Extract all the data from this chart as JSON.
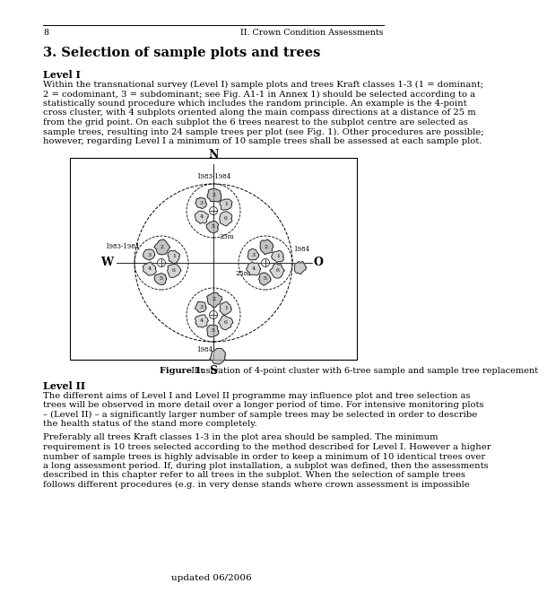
{
  "page_number": "8",
  "header_right": "II. Crown Condition Assessments",
  "section_title": "3. Selection of sample plots and trees",
  "level1_heading": "Level I",
  "level1_text": "Within the transnational survey (Level I) sample plots and trees Kraft classes 1-3 (1 = dominant;\n2 = codominant, 3 = subdominant; see Fig. A1-1 in Annex 1) should be selected according to a\nstatistically sound procedure which includes the random principle. An example is the 4-point\ncross cluster, with 4 subplots oriented along the main compass directions at a distance of 25 m\nfrom the grid point. On each subplot the 6 trees nearest to the subplot centre are selected as\nsample trees, resulting into 24 sample trees per plot (see Fig. 1). Other procedures are possible;\nhowever, regarding Level I a minimum of 10 sample trees shall be assessed at each sample plot.",
  "figure_caption_bold": "Figure 1:",
  "figure_caption_normal": " Illustration of 4-point cluster with 6-tree sample and sample tree replacement",
  "level2_heading": "Level II",
  "level2_text1": "The different aims of Level I and Level II programme may influence plot and tree selection as\ntrees will be observed in more detail over a longer period of time. For intensive monitoring plots\n– (Level II) – a significantly larger number of sample trees may be selected in order to describe\nthe health status of the stand more completely.",
  "level2_text2": "Preferably all trees Kraft classes 1-3 in the plot area should be sampled. The minimum\nrequirement is 10 trees selected according to the method described for Level I. However a higher\nnumber of sample trees is highly advisable in order to keep a minimum of 10 identical trees over\na long assessment period. If, during plot installation, a subplot was defined, then the assessments\ndescribed in this chapter refer to all trees in the subplot. When the selection of sample trees\nfollows different procedures (e.g. in very dense stands where crown assessment is impossible",
  "footer": "updated 06/2006",
  "background_color": "#ffffff",
  "text_color": "#000000",
  "font_size_body": 7.2,
  "font_size_heading": 8.0,
  "font_size_section": 10.5,
  "font_size_header": 6.8,
  "font_size_caption": 7.0
}
